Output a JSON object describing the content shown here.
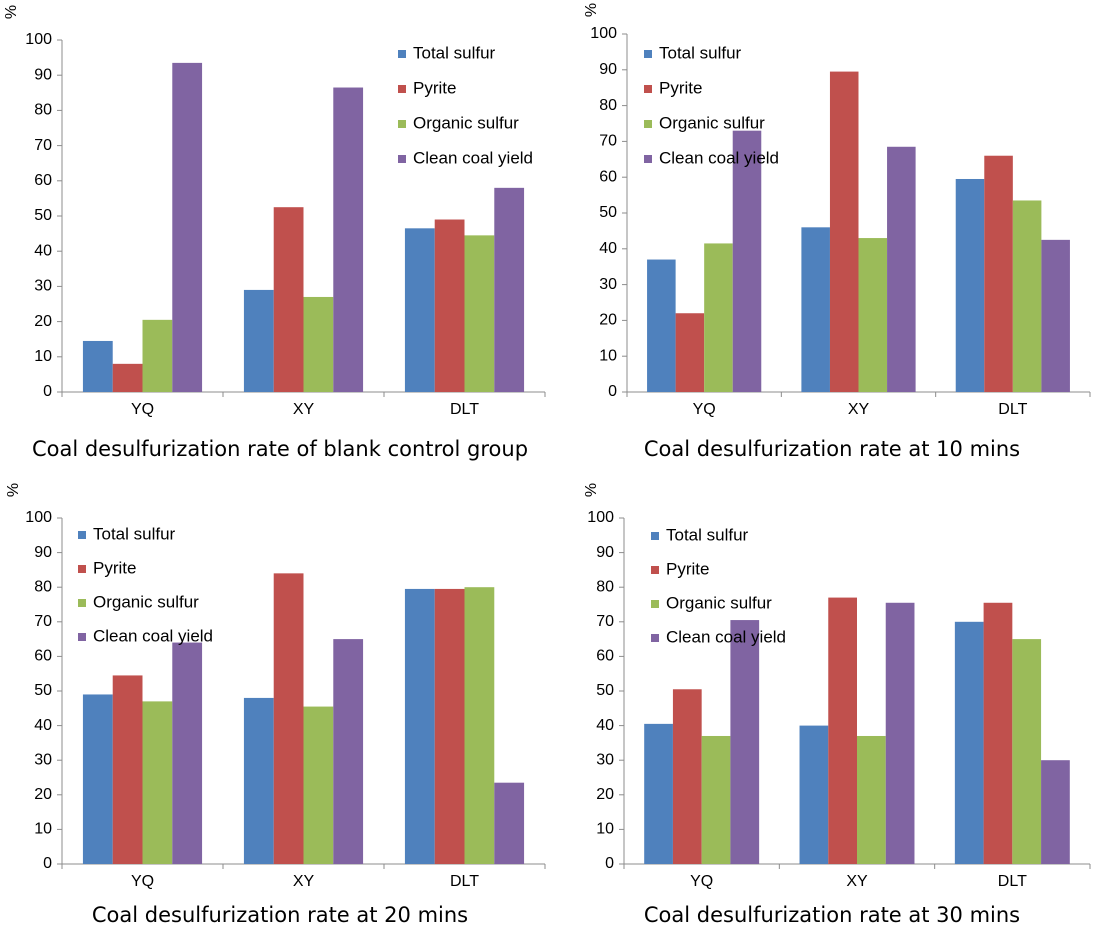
{
  "series_colors": [
    "#4f81bd",
    "#c0504d",
    "#9bbb59",
    "#8064a2"
  ],
  "chart_data": [
    {
      "type": "bar",
      "title": "Coal desulfurization rate of blank control group",
      "ylabel": "%",
      "xlabel": "",
      "categories": [
        "YQ",
        "XY",
        "DLT"
      ],
      "ylim": [
        0,
        100
      ],
      "yticks": [
        0,
        10,
        20,
        30,
        40,
        50,
        60,
        70,
        80,
        90,
        100
      ],
      "legend_position": "top-right",
      "grid": false,
      "series": [
        {
          "name": "Total sulfur",
          "values": [
            14.5,
            29,
            46.5
          ]
        },
        {
          "name": "Pyrite",
          "values": [
            8,
            52.5,
            49
          ]
        },
        {
          "name": "Organic sulfur",
          "values": [
            20.5,
            27,
            44.5
          ]
        },
        {
          "name": "Clean coal yield",
          "values": [
            93.5,
            86.5,
            58
          ]
        }
      ]
    },
    {
      "type": "bar",
      "title": "Coal desulfurization rate at 10 mins",
      "ylabel": "%",
      "xlabel": "",
      "categories": [
        "YQ",
        "XY",
        "DLT"
      ],
      "ylim": [
        0,
        100
      ],
      "yticks": [
        0,
        10,
        20,
        30,
        40,
        50,
        60,
        70,
        80,
        90,
        100
      ],
      "legend_position": "top-left",
      "grid": false,
      "series": [
        {
          "name": "Total sulfur",
          "values": [
            37,
            46,
            59.5
          ]
        },
        {
          "name": "Pyrite",
          "values": [
            22,
            89.5,
            66
          ]
        },
        {
          "name": "Organic sulfur",
          "values": [
            41.5,
            43,
            53.5
          ]
        },
        {
          "name": "Clean coal yield",
          "values": [
            73,
            68.5,
            42.5
          ]
        }
      ]
    },
    {
      "type": "bar",
      "title": "Coal desulfurization rate at 20 mins",
      "ylabel": "%",
      "xlabel": "",
      "categories": [
        "YQ",
        "XY",
        "DLT"
      ],
      "ylim": [
        0,
        100
      ],
      "yticks": [
        0,
        10,
        20,
        30,
        40,
        50,
        60,
        70,
        80,
        90,
        100
      ],
      "legend_position": "top-left",
      "grid": false,
      "series": [
        {
          "name": "Total sulfur",
          "values": [
            49,
            48,
            79.5
          ]
        },
        {
          "name": "Pyrite",
          "values": [
            54.5,
            84,
            79.5
          ]
        },
        {
          "name": "Organic sulfur",
          "values": [
            47,
            45.5,
            80
          ]
        },
        {
          "name": "Clean coal yield",
          "values": [
            64,
            65,
            23.5
          ]
        }
      ]
    },
    {
      "type": "bar",
      "title": "Coal desulfurization rate at 30 mins",
      "ylabel": "%",
      "xlabel": "",
      "categories": [
        "YQ",
        "XY",
        "DLT"
      ],
      "ylim": [
        0,
        100
      ],
      "yticks": [
        0,
        10,
        20,
        30,
        40,
        50,
        60,
        70,
        80,
        90,
        100
      ],
      "legend_position": "top-left",
      "grid": false,
      "series": [
        {
          "name": "Total sulfur",
          "values": [
            40.5,
            40,
            70
          ]
        },
        {
          "name": "Pyrite",
          "values": [
            50.5,
            77,
            75.5
          ]
        },
        {
          "name": "Organic sulfur",
          "values": [
            37,
            37,
            65
          ]
        },
        {
          "name": "Clean coal yield",
          "values": [
            70.5,
            75.5,
            30
          ]
        }
      ]
    }
  ]
}
